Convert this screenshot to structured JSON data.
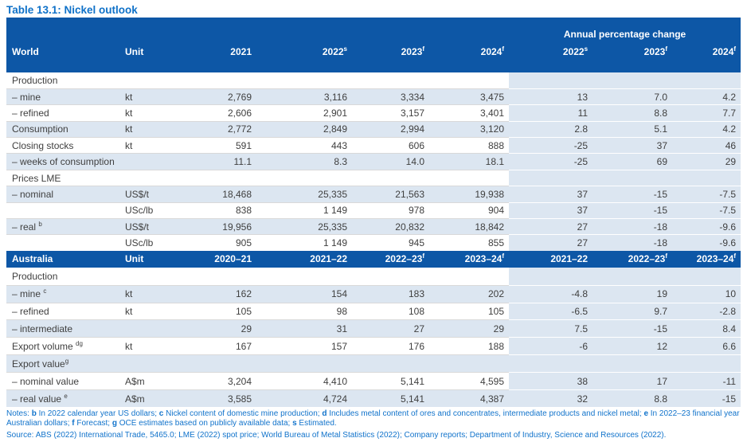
{
  "page_title": "Table 13.1: Nickel outlook",
  "apc_label": "Annual percentage change",
  "colors": {
    "header_blue": "#0D57A6",
    "stripe_blue": "#DCE6F1",
    "title_blue": "#0F71C8",
    "note_blue": "#1173CB",
    "text_gray": "#3F3F3F"
  },
  "sections": [
    {
      "name": "world",
      "row_class": "r-world",
      "header": {
        "label": "World",
        "unit": "Unit",
        "cols": [
          {
            "t": "2021",
            "sup": ""
          },
          {
            "t": "2022",
            "sup": "s"
          },
          {
            "t": "2023",
            "sup": "f"
          },
          {
            "t": "2024",
            "sup": "f"
          },
          {
            "t": "2022",
            "sup": "s"
          },
          {
            "t": "2023",
            "sup": "f"
          },
          {
            "t": "2024",
            "sup": "f"
          }
        ]
      },
      "rows": [
        {
          "label": "Production",
          "label_sup": "",
          "unit": "",
          "values": [
            "",
            "",
            "",
            "",
            "",
            "",
            ""
          ]
        },
        {
          "label": "– mine",
          "label_sup": "",
          "unit": "kt",
          "values": [
            "2,769",
            "3,116",
            "3,334",
            "3,475",
            "13",
            "7.0",
            "4.2"
          ]
        },
        {
          "label": "– refined",
          "label_sup": "",
          "unit": "kt",
          "values": [
            "2,606",
            "2,901",
            "3,157",
            "3,401",
            "11",
            "8.8",
            "7.7"
          ]
        },
        {
          "label": "Consumption",
          "label_sup": "",
          "unit": "kt",
          "values": [
            "2,772",
            "2,849",
            "2,994",
            "3,120",
            "2.8",
            "5.1",
            "4.2"
          ]
        },
        {
          "label": "Closing stocks",
          "label_sup": "",
          "unit": "kt",
          "values": [
            "591",
            "443",
            "606",
            "888",
            "-25",
            "37",
            "46"
          ]
        },
        {
          "label": "– weeks of consumption",
          "label_sup": "",
          "unit": "",
          "values": [
            "11.1",
            "8.3",
            "14.0",
            "18.1",
            "-25",
            "69",
            "29"
          ]
        },
        {
          "label": "Prices LME",
          "label_sup": "",
          "unit": "",
          "values": [
            "",
            "",
            "",
            "",
            "",
            "",
            ""
          ]
        },
        {
          "label": "– nominal",
          "label_sup": "",
          "unit": "US$/t",
          "values": [
            "18,468",
            "25,335",
            "21,563",
            "19,938",
            "37",
            "-15",
            "-7.5"
          ]
        },
        {
          "label": "",
          "label_sup": "",
          "unit": "USc/lb",
          "values": [
            "838",
            "1 149",
            "978",
            "904",
            "37",
            "-15",
            "-7.5"
          ]
        },
        {
          "label": "– real ",
          "label_sup": "b",
          "unit": "US$/t",
          "values": [
            "19,956",
            "25,335",
            "20,832",
            "18,842",
            "27",
            "-18",
            "-9.6"
          ]
        },
        {
          "label": "",
          "label_sup": "",
          "unit": "USc/lb",
          "values": [
            "905",
            "1 149",
            "945",
            "855",
            "27",
            "-18",
            "-9.6"
          ]
        }
      ]
    },
    {
      "name": "australia",
      "row_class": "r-aus",
      "header": {
        "label": "Australia",
        "unit": "Unit",
        "cols": [
          {
            "t": "2020–21",
            "sup": ""
          },
          {
            "t": "2021–22",
            "sup": ""
          },
          {
            "t": "2022–23",
            "sup": "f"
          },
          {
            "t": "2023–24",
            "sup": "f"
          },
          {
            "t": "2021–22",
            "sup": ""
          },
          {
            "t": "2022–23",
            "sup": "f"
          },
          {
            "t": "2023–24",
            "sup": "f"
          }
        ]
      },
      "rows": [
        {
          "label": "Production",
          "label_sup": "",
          "unit": "",
          "values": [
            "",
            "",
            "",
            "",
            "",
            "",
            ""
          ]
        },
        {
          "label": "– mine ",
          "label_sup": "c",
          "unit": "kt",
          "values": [
            "162",
            "154",
            "183",
            "202",
            "-4.8",
            "19",
            "10"
          ]
        },
        {
          "label": "– refined",
          "label_sup": "",
          "unit": "kt",
          "values": [
            "105",
            "98",
            "108",
            "105",
            "-6.5",
            "9.7",
            "-2.8"
          ]
        },
        {
          "label": "– intermediate",
          "label_sup": "",
          "unit": "",
          "values": [
            "29",
            "31",
            "27",
            "29",
            "7.5",
            "-15",
            "8.4"
          ]
        },
        {
          "label": "Export volume ",
          "label_sup": "dg",
          "unit": "kt",
          "values": [
            "167",
            "157",
            "176",
            "188",
            "-6",
            "12",
            "6.6"
          ]
        },
        {
          "label": "Export value",
          "label_sup": "g",
          "unit": "",
          "values": [
            "",
            "",
            "",
            "",
            "",
            "",
            ""
          ]
        },
        {
          "label": "– nominal value",
          "label_sup": "",
          "unit": "A$m",
          "values": [
            "3,204",
            "4,410",
            "5,141",
            "4,595",
            "38",
            "17",
            "-11"
          ]
        },
        {
          "label": "– real value ",
          "label_sup": "e",
          "unit": "A$m",
          "values": [
            "3,585",
            "4,724",
            "5,141",
            "4,387",
            "32",
            "8.8",
            "-15"
          ]
        }
      ]
    }
  ],
  "notes_segments": [
    {
      "t": "Notes: ",
      "b": false
    },
    {
      "t": "b",
      "b": true
    },
    {
      "t": " In 2022 calendar year US dollars; ",
      "b": false
    },
    {
      "t": "c",
      "b": true
    },
    {
      "t": " Nickel content of domestic mine production; ",
      "b": false
    },
    {
      "t": "d",
      "b": true
    },
    {
      "t": " Includes metal content of ores and concentrates, intermediate products and nickel metal; ",
      "b": false
    },
    {
      "t": "e",
      "b": true
    },
    {
      "t": " In 2022–23 financial year Australian dollars; ",
      "b": false
    },
    {
      "t": "f",
      "b": true
    },
    {
      "t": " Forecast; ",
      "b": false
    },
    {
      "t": "g",
      "b": true
    },
    {
      "t": " OCE estimates based on publicly available data; ",
      "b": false
    },
    {
      "t": "s",
      "b": true
    },
    {
      "t": " Estimated.",
      "b": false
    }
  ],
  "source": "Source: ABS (2022) International Trade, 5465.0; LME (2022) spot price; World Bureau of Metal Statistics (2022); Company reports; Department of Industry, Science and Resources (2022)."
}
